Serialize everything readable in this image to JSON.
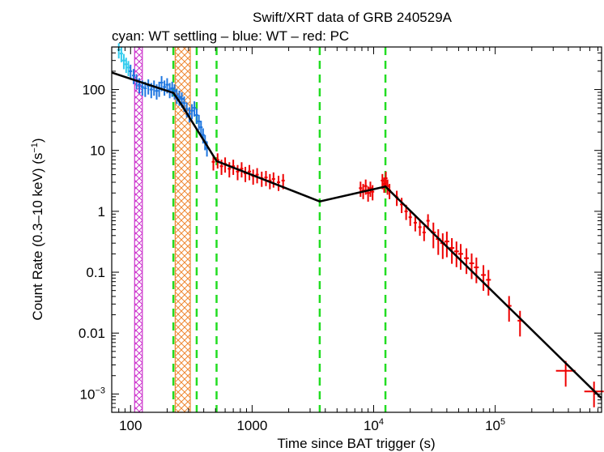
{
  "chart_data": {
    "type": "scatter",
    "title": "Swift/XRT data of GRB 240529A",
    "subtitle": "cyan: WT settling – blue: WT – red: PC",
    "xlabel": "Time since BAT trigger (s)",
    "ylabel": "Count Rate (0.3–10 keV) (s",
    "ylabel_sup": "−1",
    "ylabel_tail": ")",
    "x_scale": "log",
    "y_scale": "log",
    "xlim": [
      70,
      750000
    ],
    "ylim": [
      0.0005,
      500
    ],
    "x_ticks": [
      {
        "value": 100,
        "label": "100"
      },
      {
        "value": 1000,
        "label": "1000"
      },
      {
        "value": 10000,
        "label": "10",
        "sup": "4"
      },
      {
        "value": 100000,
        "label": "10",
        "sup": "5"
      }
    ],
    "y_ticks": [
      {
        "value": 100,
        "label": "100"
      },
      {
        "value": 10,
        "label": "10"
      },
      {
        "value": 1,
        "label": "1"
      },
      {
        "value": 0.1,
        "label": "0.1"
      },
      {
        "value": 0.01,
        "label": "0.01"
      },
      {
        "value": 0.001,
        "label": "10",
        "sup": "−3"
      }
    ],
    "colors": {
      "wt_settling": "#33ccee",
      "wt": "#1f77e0",
      "pc": "#ee0000",
      "model": "#000000",
      "breaks": "#22dd22",
      "band_magenta": "#cc33cc",
      "band_orange": "#ee8833"
    },
    "shaded_bands": [
      {
        "name": "magenta",
        "x0": 108,
        "x1": 125
      },
      {
        "name": "orange",
        "x0": 233,
        "x1": 310
      }
    ],
    "break_times": [
      225,
      350,
      510,
      3600,
      12500
    ],
    "model_line": {
      "x": [
        70,
        225,
        260,
        510,
        3600,
        12500,
        750000
      ],
      "y": [
        190,
        88,
        58,
        6.7,
        1.45,
        2.55,
        0.00085
      ]
    },
    "series": [
      {
        "name": "WT settling",
        "x": [
          80,
          84,
          88,
          92,
          96
        ],
        "y": [
          450,
          390,
          300,
          260,
          230
        ]
      },
      {
        "name": "WT",
        "x": [
          100,
          106,
          112,
          118,
          125,
          132,
          140,
          148,
          156,
          164,
          172,
          180,
          190,
          200,
          210,
          220,
          230,
          240,
          252,
          264,
          276,
          290,
          305,
          320,
          335,
          350,
          365,
          380,
          395,
          410,
          425
        ],
        "y": [
          200,
          170,
          140,
          120,
          110,
          105,
          115,
          100,
          110,
          95,
          105,
          130,
          110,
          120,
          100,
          105,
          95,
          80,
          75,
          70,
          60,
          48,
          40,
          45,
          50,
          38,
          30,
          24,
          18,
          14,
          11
        ]
      },
      {
        "name": "PC",
        "x": [
          480,
          520,
          560,
          600,
          650,
          700,
          760,
          820,
          880,
          950,
          1020,
          1100,
          1200,
          1300,
          1400,
          1500,
          1650,
          1800,
          7800,
          8200,
          8600,
          9000,
          9400,
          9800,
          11800,
          12200,
          12600,
          13000,
          13500,
          15500,
          17000,
          18500,
          20000,
          22000,
          24000,
          26000,
          28000,
          31000,
          34000,
          37000,
          40000,
          44000,
          48000,
          52000,
          58000,
          64000,
          70000,
          80000,
          88000,
          130000,
          160000,
          380000,
          650000
        ],
        "y": [
          6.5,
          7,
          5.5,
          6,
          5,
          5.5,
          4.5,
          5,
          4.2,
          4.5,
          3.8,
          4,
          3.5,
          3.6,
          3.2,
          3.4,
          3,
          3.2,
          2.4,
          2.2,
          2.6,
          2,
          2.4,
          2.1,
          3.2,
          2.8,
          3.5,
          2.6,
          2.2,
          1.7,
          1.3,
          1.0,
          0.8,
          0.65,
          0.55,
          0.45,
          0.7,
          0.45,
          0.35,
          0.3,
          0.32,
          0.25,
          0.22,
          0.2,
          0.17,
          0.14,
          0.12,
          0.09,
          0.075,
          0.028,
          0.016,
          0.0024,
          0.0011
        ]
      }
    ]
  }
}
